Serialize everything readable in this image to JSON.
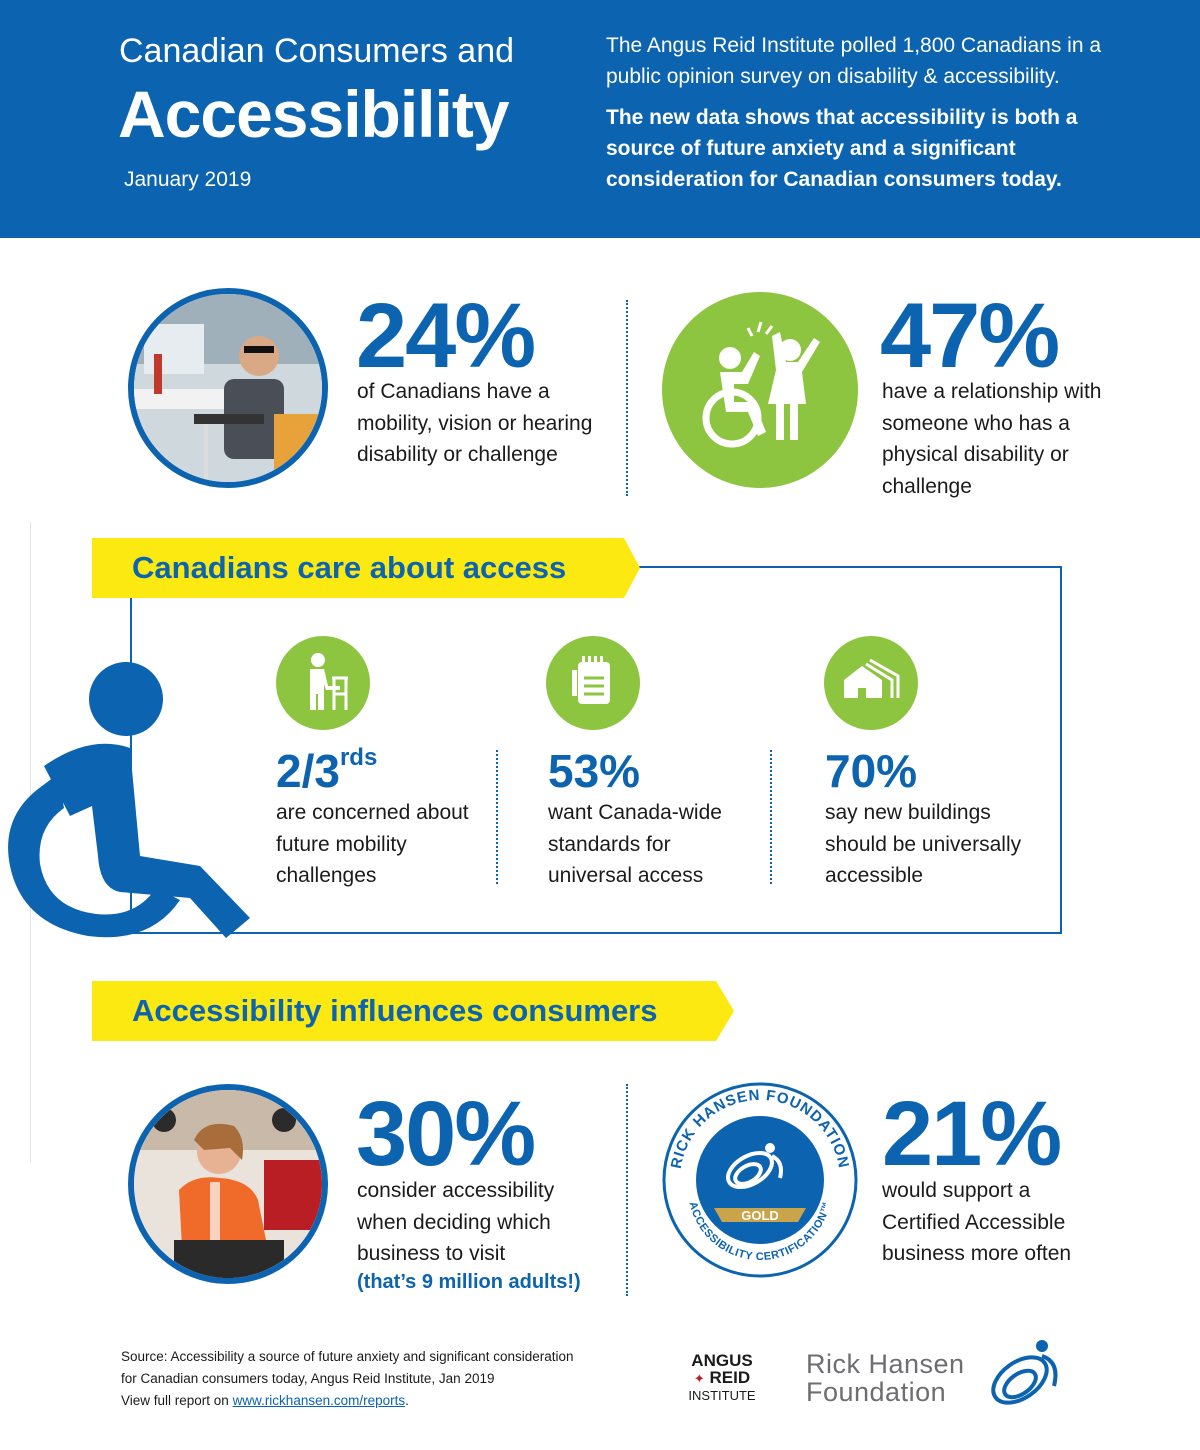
{
  "header": {
    "subtitle": "Canadian Consumers and",
    "title": "Accessibility",
    "date": "January 2019",
    "intro": "The Angus Reid Institute polled 1,800 Canadians in a public opinion survey on disability & accessibility.",
    "highlight": "The new data shows that accessibility is both a source of future anxiety and a significant consideration for Canadian consumers today."
  },
  "stats_top": [
    {
      "value": "24%",
      "text": "of Canadians have a mobility, vision or hearing disability or challenge",
      "image": "man-with-cane-at-desk-photo"
    },
    {
      "value": "47%",
      "text": "have a relationship with someone who has a physical disability or challenge",
      "icon": "high-five-wheelchair-icon"
    }
  ],
  "section_care": {
    "heading": "Canadians care about access",
    "items": [
      {
        "value": "2/3",
        "suffix": "rds",
        "text": "are concerned about future mobility challenges",
        "icon": "walker-person-icon"
      },
      {
        "value": "53%",
        "text": "want Canada-wide standards for universal access",
        "icon": "clipboard-icon"
      },
      {
        "value": "70%",
        "text": "say new buildings should be universally accessible",
        "icon": "buildings-icon"
      }
    ]
  },
  "section_consumers": {
    "heading": "Accessibility influences consumers",
    "items": [
      {
        "value": "30%",
        "text": "consider accessibility when deciding which business to visit",
        "note": "(that’s 9 million adults!)",
        "image": "woman-in-wheelchair-photo"
      },
      {
        "value": "21%",
        "text": "would support a Certified Accessible business more often"
      }
    ],
    "badge": {
      "ring_top": "RICK HANSEN FOUNDATION",
      "ring_bottom": "ACCESSIBILITY CERTIFICATION™",
      "level": "GOLD"
    }
  },
  "footer": {
    "source_line1": "Source: Accessibility a source of future anxiety and significant consideration",
    "source_line2": "for Canadian consumers today, Angus Reid Institute, Jan 2019",
    "view_prefix": "View full report on ",
    "link_text": "www.rickhansen.com/reports",
    "view_suffix": ".",
    "logo_angus_1": "ANGUS",
    "logo_angus_2": "REID",
    "logo_angus_3": "INSTITUTE",
    "logo_rhf_1": "Rick Hansen",
    "logo_rhf_2": "Foundation"
  },
  "colors": {
    "brand_blue": "#0c63b0",
    "yellow": "#fbe911",
    "green": "#8ec540"
  }
}
